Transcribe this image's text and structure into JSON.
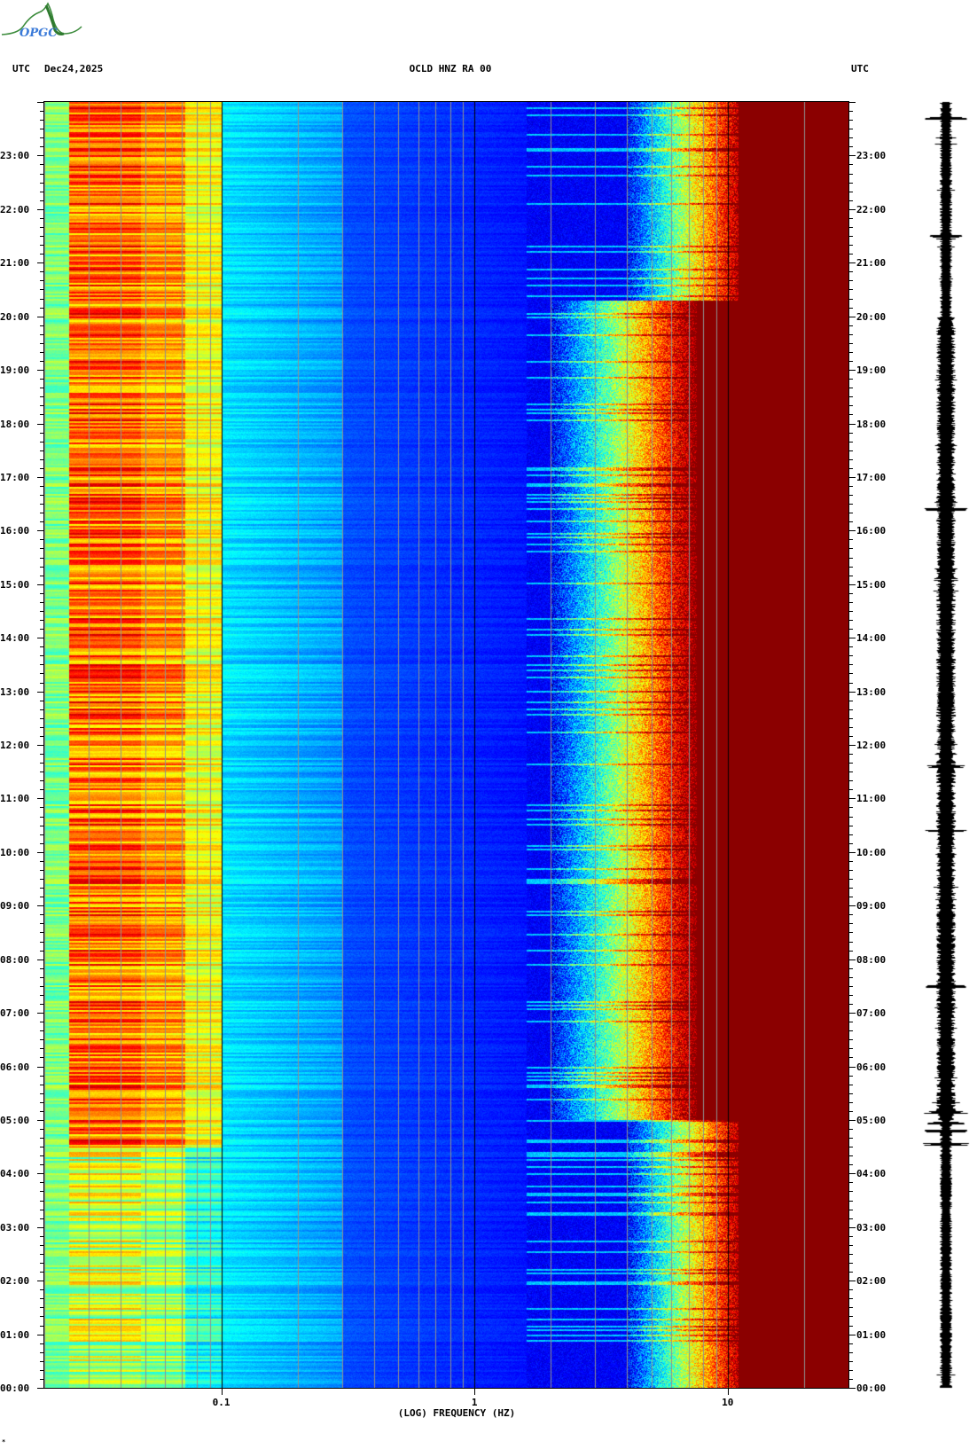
{
  "logo": {
    "text": "OPGC"
  },
  "header": {
    "left_tz": "UTC",
    "date": "Dec24,2025",
    "title": "OCLD HNZ RA 00",
    "right_tz": "UTC"
  },
  "chart_data": {
    "type": "heatmap",
    "title": "OCLD HNZ RA 00",
    "xlabel": "(LOG) FREQUENCY (HZ)",
    "x_scale": "log",
    "xlim": [
      0.02,
      30
    ],
    "x_ticks": [
      {
        "value": 0.1,
        "label": "0.1"
      },
      {
        "value": 1,
        "label": "1"
      },
      {
        "value": 10,
        "label": "10"
      }
    ],
    "x_gridlines_minor": [
      0.02,
      0.03,
      0.04,
      0.05,
      0.06,
      0.07,
      0.08,
      0.09,
      0.2,
      0.3,
      0.4,
      0.5,
      0.6,
      0.7,
      0.8,
      0.9,
      2,
      3,
      4,
      5,
      6,
      7,
      8,
      9,
      20
    ],
    "x_gridlines_major": [
      0.1,
      1,
      10
    ],
    "ylabel": "UTC",
    "ylim_hours": [
      0,
      24
    ],
    "y_direction": "time increases upward",
    "y_ticks": [
      "00:00",
      "01:00",
      "02:00",
      "03:00",
      "04:00",
      "05:00",
      "06:00",
      "07:00",
      "08:00",
      "09:00",
      "10:00",
      "11:00",
      "12:00",
      "13:00",
      "14:00",
      "15:00",
      "16:00",
      "17:00",
      "18:00",
      "19:00",
      "20:00",
      "21:00",
      "22:00",
      "23:00"
    ],
    "y_minor_tick_minutes": 10,
    "colormap": "jet",
    "colors": {
      "low": "#00008b",
      "mid": "#00ffff",
      "high": "#ffff00",
      "max": "#8b0000",
      "grid_minor": "#909090",
      "grid_major": "#000000"
    },
    "side_panel": "seismogram trace"
  },
  "footer": {
    "mark": "*"
  }
}
